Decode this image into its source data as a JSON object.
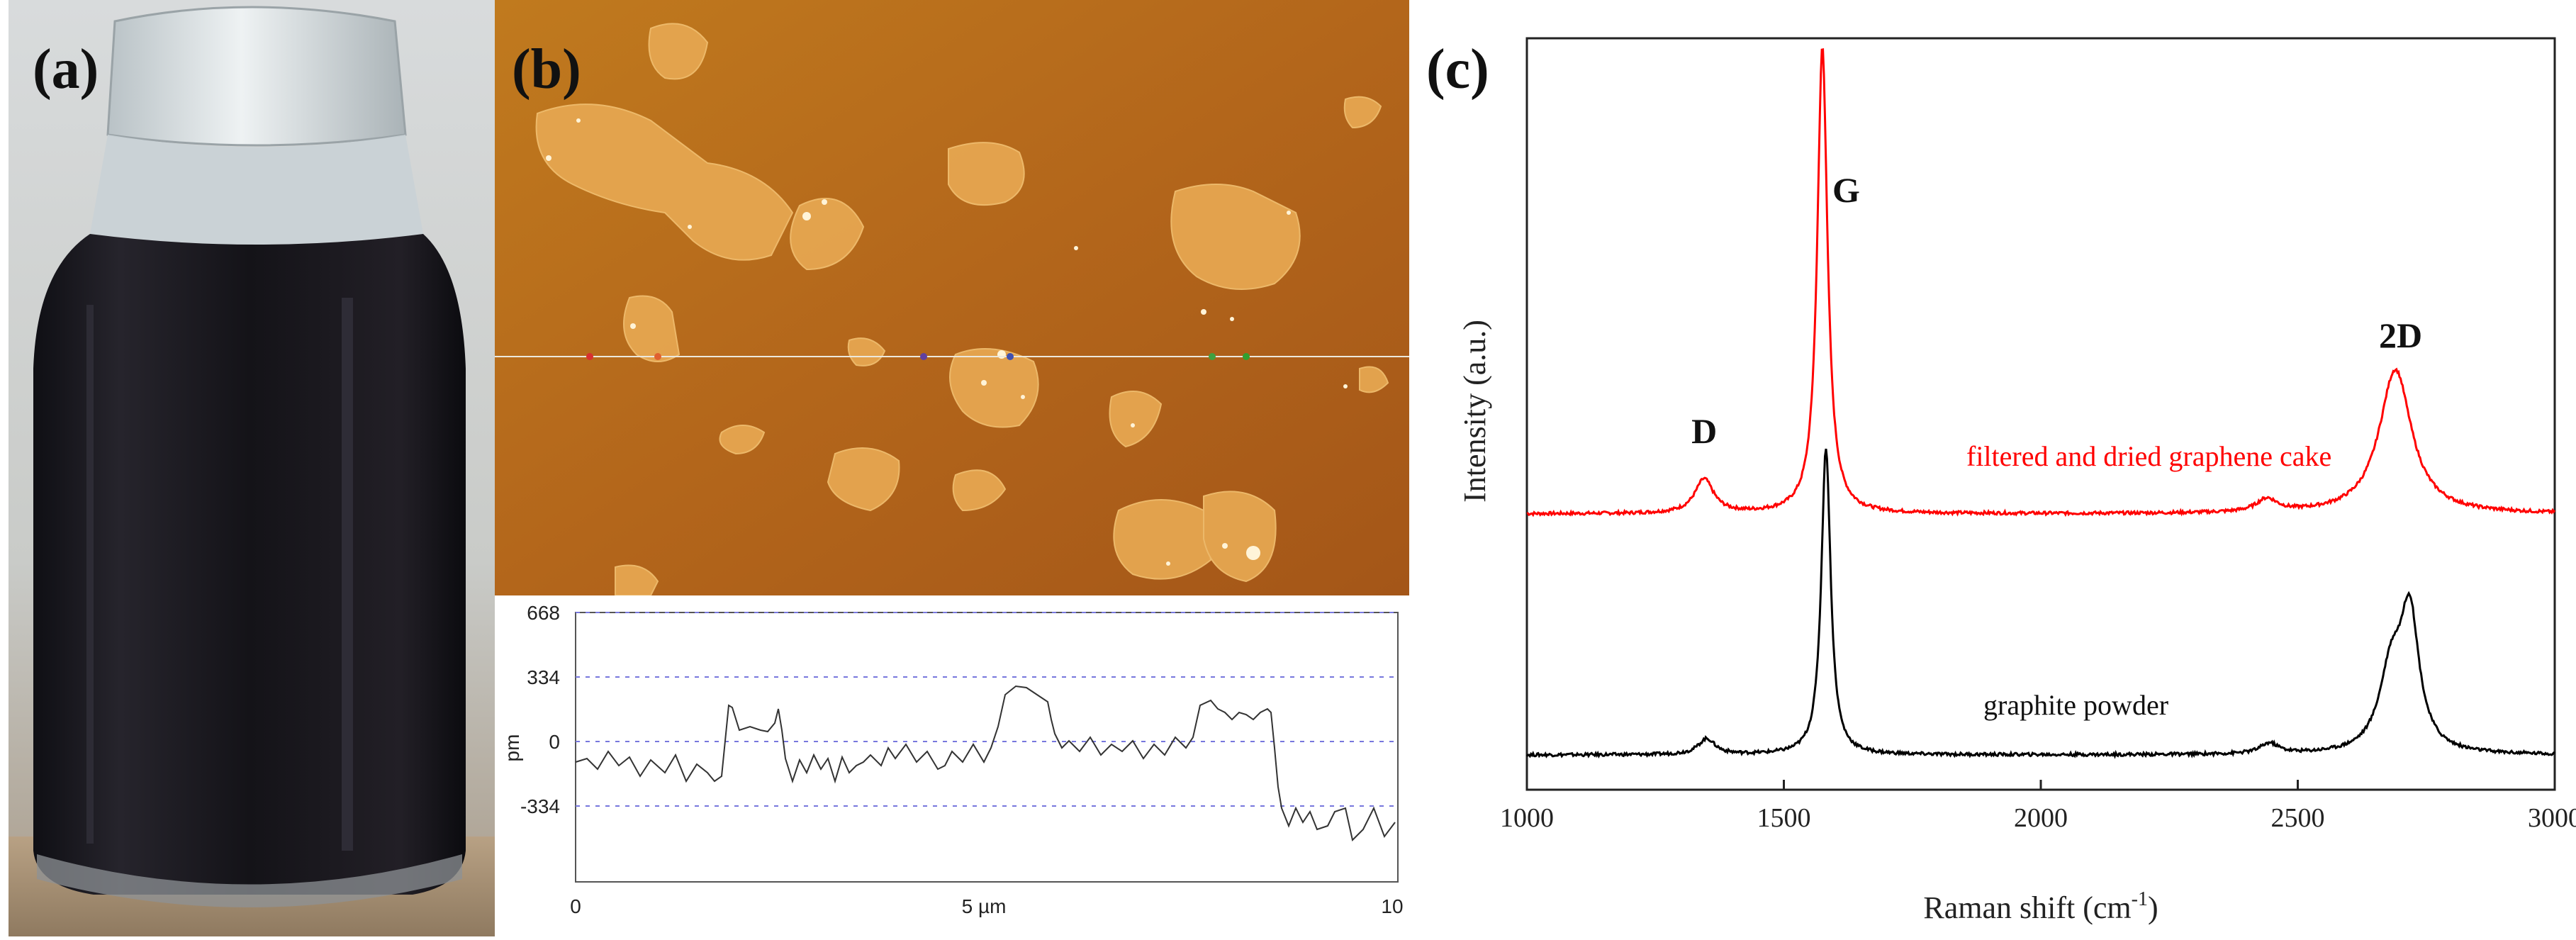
{
  "figure": {
    "panels": [
      {
        "label": "(a)",
        "description_hint": "jar"
      },
      {
        "label": "(b)"
      },
      {
        "label": "(c)"
      }
    ]
  },
  "afm_profile": {
    "y_ticks": [
      "668",
      "334",
      "0",
      "-334"
    ],
    "y_unit": "pm",
    "x_ticks": [
      "0",
      "5 µm",
      "10"
    ]
  },
  "chart_data": {
    "type": "line",
    "title": "",
    "xlabel": "Raman shift (cm",
    "xlabel_sup": "-1",
    "xlabel_end": ")",
    "ylabel": "Intensity (a.u.)",
    "xlim": [
      1000,
      3000
    ],
    "x_ticks": [
      "1000",
      "1500",
      "2000",
      "2500",
      "3000"
    ],
    "x_tick_values": [
      1000,
      1500,
      2000,
      2500,
      3000
    ],
    "peak_labels": [
      {
        "text": "D",
        "x": 1345
      },
      {
        "text": "G",
        "x": 1580
      },
      {
        "text": "2D",
        "x": 2700
      }
    ],
    "series": [
      {
        "name": "filtered and dried graphene cake",
        "color": "#ff0000",
        "baseline": 0.0,
        "peaks": [
          {
            "center": 1345,
            "height": 0.13,
            "width": 22
          },
          {
            "center": 1575,
            "height": 1.78,
            "width": 12
          },
          {
            "center": 2440,
            "height": 0.05,
            "width": 25
          },
          {
            "center": 2690,
            "height": 0.55,
            "width": 38
          }
        ]
      },
      {
        "name": "graphite powder",
        "color": "#000000",
        "baseline": 0.0,
        "peaks": [
          {
            "center": 1350,
            "height": 0.06,
            "width": 20
          },
          {
            "center": 1582,
            "height": 1.17,
            "width": 11
          },
          {
            "center": 2445,
            "height": 0.04,
            "width": 22
          },
          {
            "center": 2682,
            "height": 0.3,
            "width": 28
          },
          {
            "center": 2718,
            "height": 0.5,
            "width": 22
          }
        ]
      }
    ]
  }
}
